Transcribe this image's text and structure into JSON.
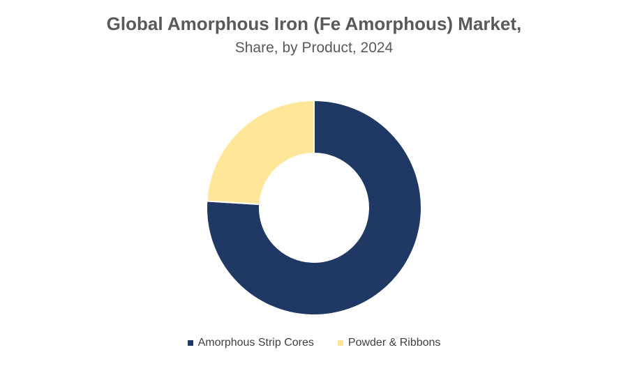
{
  "header": {
    "title": "Global Amorphous Iron (Fe Amorphous) Market,",
    "subtitle": "Share, by Product, 2024"
  },
  "colors": {
    "series_1": "#1f3864",
    "series_2": "#ffe699"
  },
  "chart_data": {
    "type": "pie",
    "variant": "donut",
    "title": "Global Amorphous Iron (Fe Amorphous) Market,",
    "subtitle": "Share, by Product, 2024",
    "categories": [
      "Amorphous Strip Cores",
      "Powder & Ribbons"
    ],
    "values": [
      76,
      24
    ],
    "unit": "%",
    "legend_position": "bottom"
  },
  "legend": {
    "items": [
      {
        "label": "Amorphous Strip Cores",
        "color": "#1f3864"
      },
      {
        "label": "Powder & Ribbons",
        "color": "#ffe699"
      }
    ]
  }
}
